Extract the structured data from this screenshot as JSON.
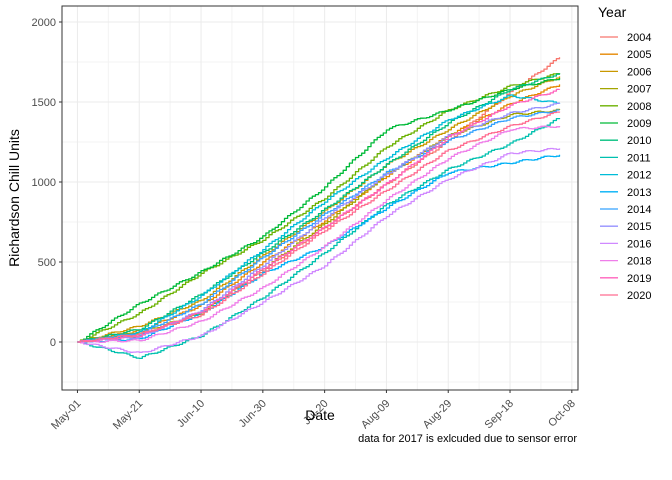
{
  "chart_data": {
    "type": "line",
    "xlabel": "Date",
    "ylabel": "Richardson Chill Units",
    "caption": "data for 2017 is exlcuded due to sensor error",
    "legend_title": "Year",
    "legend_position": "right",
    "grid": true,
    "xlim": [
      "2020-04-26",
      "2020-10-10"
    ],
    "ylim": [
      -300,
      2100
    ],
    "x_ticks": [
      "May-01",
      "May-21",
      "Jun-10",
      "Jun-30",
      "Jul-20",
      "Aug-09",
      "Aug-29",
      "Sep-18",
      "Oct-08"
    ],
    "x_tick_dates": [
      "2020-05-01",
      "2020-05-21",
      "2020-06-10",
      "2020-06-30",
      "2020-07-20",
      "2020-08-09",
      "2020-08-29",
      "2020-09-18",
      "2020-10-08"
    ],
    "y_ticks": [
      "0",
      "500",
      "1000",
      "1500",
      "2000"
    ],
    "y_tick_values": [
      0,
      500,
      1000,
      1500,
      2000
    ],
    "series": [
      {
        "name": "2004",
        "color": "#F8766D",
        "x": [
          "2020-05-01",
          "2020-05-21",
          "2020-06-10",
          "2020-06-30",
          "2020-07-20",
          "2020-08-09",
          "2020-08-29",
          "2020-09-18",
          "2020-10-04"
        ],
        "values": [
          0,
          40,
          190,
          450,
          720,
          990,
          1260,
          1560,
          1780
        ]
      },
      {
        "name": "2005",
        "color": "#E58700",
        "x": [
          "2020-05-01",
          "2020-05-21",
          "2020-06-10",
          "2020-06-30",
          "2020-07-20",
          "2020-08-09",
          "2020-08-29",
          "2020-09-18",
          "2020-10-04"
        ],
        "values": [
          0,
          70,
          230,
          500,
          760,
          1040,
          1290,
          1490,
          1610
        ]
      },
      {
        "name": "2006",
        "color": "#C99800",
        "x": [
          "2020-05-01",
          "2020-05-21",
          "2020-06-10",
          "2020-06-30",
          "2020-07-20",
          "2020-08-09",
          "2020-08-29",
          "2020-09-18",
          "2020-10-04"
        ],
        "values": [
          0,
          100,
          260,
          540,
          820,
          1110,
          1330,
          1540,
          1660
        ]
      },
      {
        "name": "2007",
        "color": "#A3A500",
        "x": [
          "2020-05-01",
          "2020-05-21",
          "2020-06-10",
          "2020-06-30",
          "2020-07-20",
          "2020-08-09",
          "2020-08-29",
          "2020-09-18",
          "2020-10-04"
        ],
        "values": [
          0,
          60,
          180,
          460,
          740,
          1050,
          1290,
          1420,
          1450
        ]
      },
      {
        "name": "2008",
        "color": "#6BB100",
        "x": [
          "2020-05-01",
          "2020-05-21",
          "2020-06-10",
          "2020-06-30",
          "2020-07-20",
          "2020-08-09",
          "2020-08-29",
          "2020-09-18",
          "2020-10-04"
        ],
        "values": [
          0,
          180,
          430,
          640,
          900,
          1220,
          1450,
          1600,
          1680
        ]
      },
      {
        "name": "2009",
        "color": "#00BA38",
        "x": [
          "2020-05-01",
          "2020-05-21",
          "2020-06-10",
          "2020-06-30",
          "2020-07-20",
          "2020-08-09",
          "2020-08-29",
          "2020-09-18",
          "2020-10-04"
        ],
        "values": [
          0,
          240,
          440,
          660,
          970,
          1330,
          1450,
          1580,
          1650
        ]
      },
      {
        "name": "2010",
        "color": "#00BF7D",
        "x": [
          "2020-05-01",
          "2020-05-21",
          "2020-06-10",
          "2020-06-30",
          "2020-07-20",
          "2020-08-09",
          "2020-08-29",
          "2020-09-18",
          "2020-10-04"
        ],
        "values": [
          0,
          80,
          300,
          560,
          830,
          1110,
          1370,
          1580,
          1680
        ]
      },
      {
        "name": "2011",
        "color": "#00C0AF",
        "x": [
          "2020-05-01",
          "2020-05-21",
          "2020-06-10",
          "2020-06-30",
          "2020-07-20",
          "2020-08-09",
          "2020-08-29",
          "2020-09-18",
          "2020-10-04"
        ],
        "values": [
          0,
          -100,
          40,
          280,
          560,
          860,
          1080,
          1240,
          1400
        ]
      },
      {
        "name": "2012",
        "color": "#00BCD8",
        "x": [
          "2020-05-01",
          "2020-05-21",
          "2020-06-10",
          "2020-06-30",
          "2020-07-20",
          "2020-08-09",
          "2020-08-29",
          "2020-09-18",
          "2020-10-04"
        ],
        "values": [
          0,
          60,
          290,
          580,
          880,
          1150,
          1390,
          1540,
          1490
        ]
      },
      {
        "name": "2013",
        "color": "#00B0F6",
        "x": [
          "2020-05-01",
          "2020-05-21",
          "2020-06-10",
          "2020-06-30",
          "2020-07-20",
          "2020-08-09",
          "2020-08-29",
          "2020-09-18",
          "2020-10-04"
        ],
        "values": [
          0,
          20,
          180,
          430,
          600,
          840,
          1060,
          1120,
          1170
        ]
      },
      {
        "name": "2014",
        "color": "#35A2FF",
        "x": [
          "2020-05-01",
          "2020-05-21",
          "2020-06-10",
          "2020-06-30",
          "2020-07-20",
          "2020-08-09",
          "2020-08-29",
          "2020-09-18",
          "2020-10-04"
        ],
        "values": [
          0,
          50,
          240,
          530,
          800,
          1060,
          1260,
          1400,
          1450
        ]
      },
      {
        "name": "2015",
        "color": "#9590FF",
        "x": [
          "2020-05-01",
          "2020-05-21",
          "2020-06-10",
          "2020-06-30",
          "2020-07-20",
          "2020-08-09",
          "2020-08-29",
          "2020-09-18",
          "2020-10-04"
        ],
        "values": [
          0,
          30,
          200,
          480,
          780,
          1050,
          1290,
          1430,
          1490
        ]
      },
      {
        "name": "2016",
        "color": "#D089FF",
        "x": [
          "2020-05-01",
          "2020-05-21",
          "2020-06-10",
          "2020-06-30",
          "2020-07-20",
          "2020-08-09",
          "2020-08-29",
          "2020-09-18",
          "2020-10-04"
        ],
        "values": [
          0,
          -70,
          40,
          250,
          480,
          790,
          1020,
          1180,
          1210
        ]
      },
      {
        "name": "2018",
        "color": "#EF7EE9",
        "x": [
          "2020-05-01",
          "2020-05-21",
          "2020-06-10",
          "2020-06-30",
          "2020-07-20",
          "2020-08-09",
          "2020-08-29",
          "2020-09-18",
          "2020-10-04"
        ],
        "values": [
          0,
          10,
          130,
          340,
          600,
          890,
          1150,
          1330,
          1350
        ]
      },
      {
        "name": "2019",
        "color": "#FF62BC",
        "x": [
          "2020-05-01",
          "2020-05-21",
          "2020-06-10",
          "2020-06-30",
          "2020-07-20",
          "2020-08-09",
          "2020-08-29",
          "2020-09-18",
          "2020-10-04"
        ],
        "values": [
          0,
          40,
          190,
          460,
          720,
          990,
          1280,
          1480,
          1580
        ]
      },
      {
        "name": "2020",
        "color": "#FF6C90",
        "x": [
          "2020-05-01",
          "2020-05-21",
          "2020-06-10",
          "2020-06-30",
          "2020-07-20",
          "2020-08-09",
          "2020-08-29",
          "2020-09-18",
          "2020-10-04"
        ],
        "values": [
          0,
          50,
          170,
          430,
          700,
          950,
          1200,
          1350,
          1440
        ]
      }
    ]
  }
}
